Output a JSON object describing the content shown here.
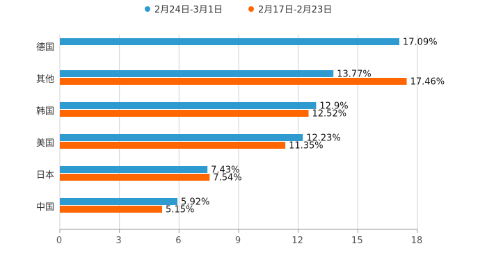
{
  "chart_data": {
    "type": "bar",
    "orientation": "horizontal",
    "categories": [
      "德国",
      "其他",
      "韩国",
      "美国",
      "日本",
      "中国"
    ],
    "series": [
      {
        "name": "2月24日-3月1日",
        "color": "#2e9ad0",
        "values": [
          17.09,
          13.77,
          12.9,
          12.23,
          7.43,
          5.92
        ],
        "labels": [
          "17.09%",
          "13.77%",
          "12.9%",
          "12.23%",
          "7.43%",
          "5.92%"
        ]
      },
      {
        "name": "2月17日-2月23日",
        "color": "#ff6600",
        "values": [
          null,
          17.46,
          12.52,
          11.35,
          7.54,
          5.15
        ],
        "labels": [
          null,
          "17.46%",
          "12.52%",
          "11.35%",
          "7.54%",
          "5.15%"
        ]
      }
    ],
    "xlim": [
      0,
      18
    ],
    "xticks": [
      0,
      3,
      6,
      9,
      12,
      15,
      18
    ],
    "title": "",
    "xlabel": "",
    "ylabel": "",
    "grid": "vertical",
    "legend_position": "top-center"
  }
}
